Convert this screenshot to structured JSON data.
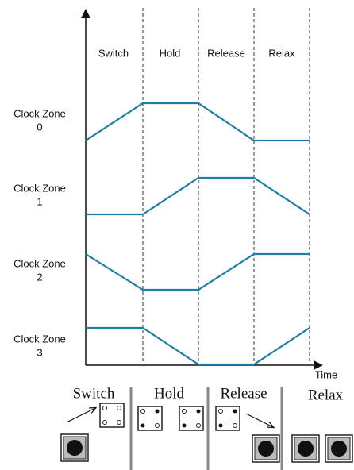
{
  "phases": [
    "Switch",
    "Hold",
    "Release",
    "Relax"
  ],
  "zones": [
    {
      "label": "Clock Zone",
      "number": "0"
    },
    {
      "label": "Clock Zone",
      "number": "1"
    },
    {
      "label": "Clock Zone",
      "number": "2"
    },
    {
      "label": "Clock Zone",
      "number": "3"
    }
  ],
  "time_label": "Time",
  "bottom_phases": [
    "Switch",
    "Hold",
    "Release",
    "Relax"
  ]
}
